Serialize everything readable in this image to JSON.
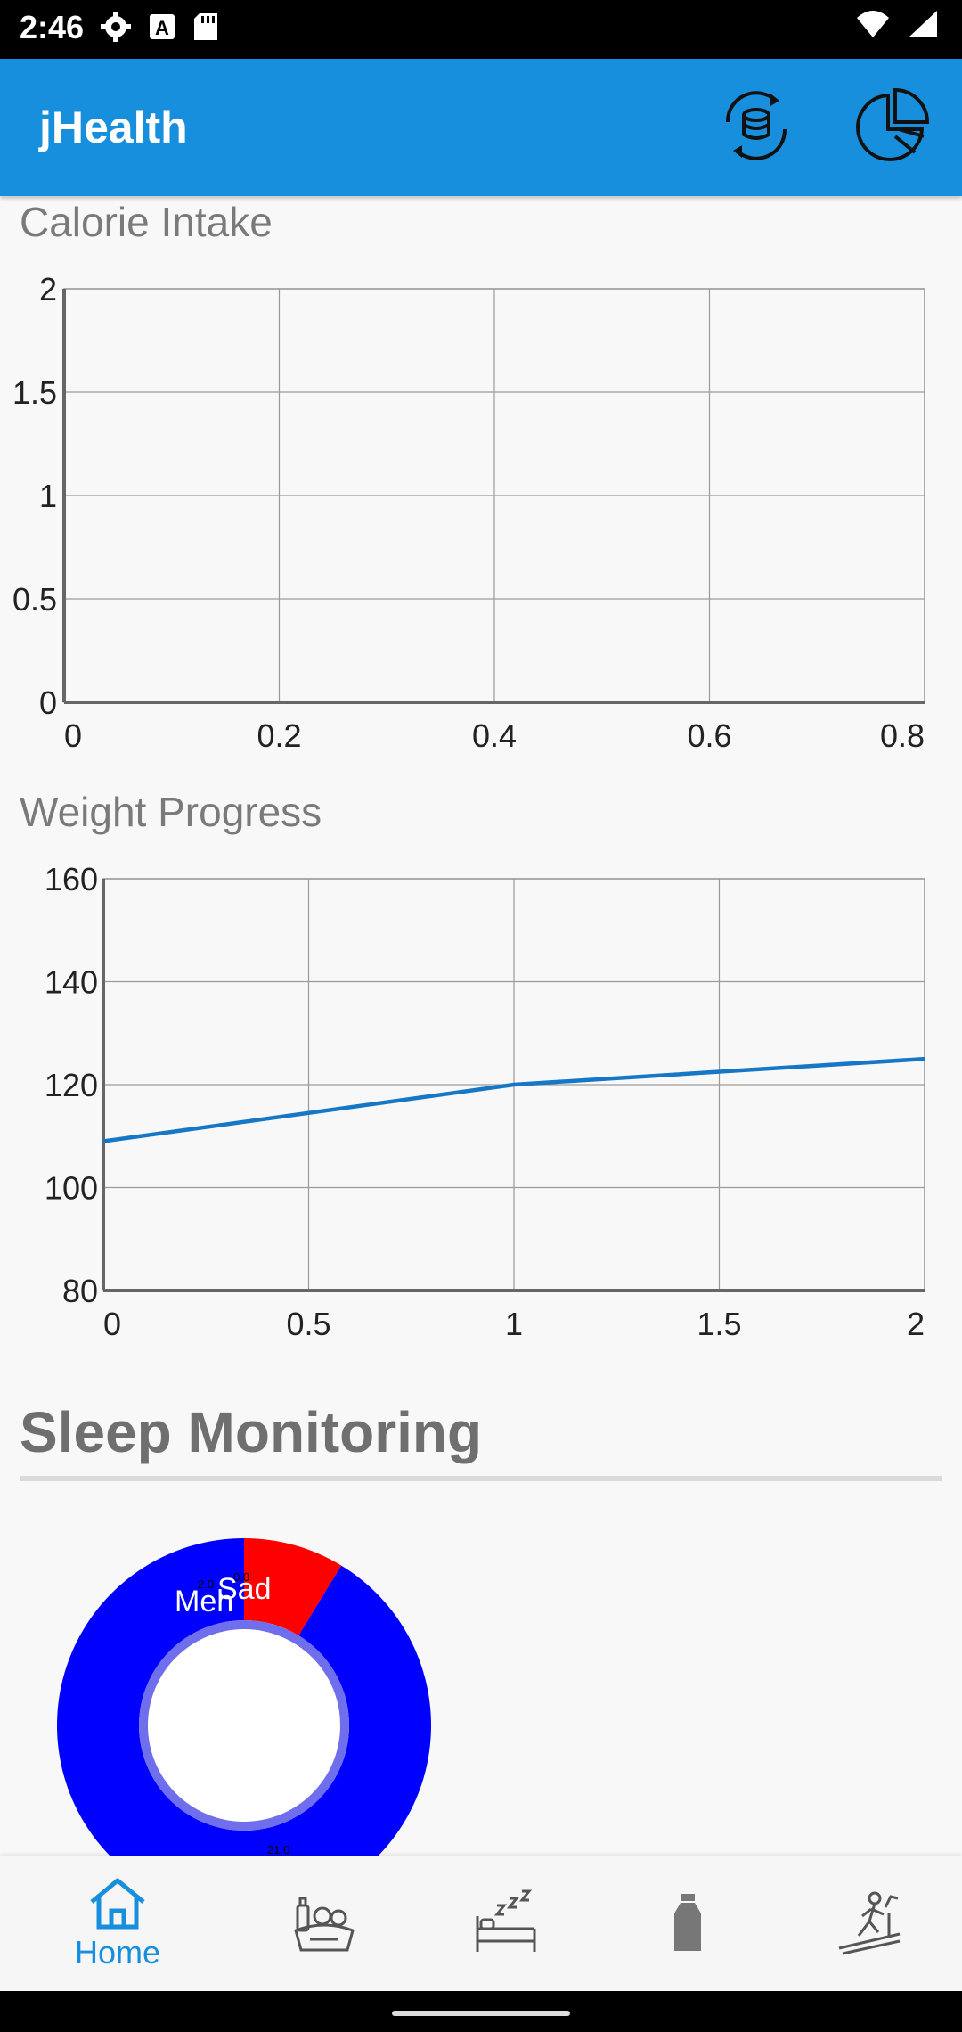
{
  "status_bar": {
    "time": "2:46",
    "icons": [
      "settings-icon",
      "a-icon",
      "sd-card-icon",
      "wifi-icon",
      "signal-icon"
    ]
  },
  "app_bar": {
    "title": "jHealth",
    "actions": [
      "database-sync-icon",
      "pie-chart-icon"
    ],
    "background": "#188fdc"
  },
  "calorie_chart": {
    "heading": "Calorie Intake",
    "chart_data": {
      "type": "line",
      "title": "Calorie Intake",
      "x": [],
      "series": [],
      "xlim": [
        0,
        0.8
      ],
      "ylim": [
        0,
        2
      ],
      "x_ticks": [
        "0",
        "0.2",
        "0.4",
        "0.6",
        "0.8"
      ],
      "y_ticks": [
        "0",
        "0.5",
        "1",
        "1.5",
        "2"
      ],
      "grid": true
    }
  },
  "weight_chart": {
    "heading": "Weight Progress",
    "chart_data": {
      "type": "line",
      "title": "Weight Progress",
      "x": [
        0,
        1,
        2
      ],
      "series": [
        {
          "values": [
            109,
            120,
            125
          ]
        }
      ],
      "xlim": [
        0,
        2
      ],
      "ylim": [
        80,
        160
      ],
      "x_ticks": [
        "0",
        "0.5",
        "1",
        "1.5",
        "2"
      ],
      "y_ticks": [
        "80",
        "100",
        "120",
        "140",
        "160"
      ],
      "grid": true,
      "line_color": "#1577c5"
    }
  },
  "sleep": {
    "heading": "Sleep Monitoring",
    "chart_data": {
      "type": "pie",
      "slices": [
        {
          "label": "Sad",
          "value": 0.0,
          "color": "#ff0000"
        },
        {
          "label": "Meh",
          "value": 2.0,
          "color": "#ff0000"
        },
        {
          "label": "",
          "value": 21.0,
          "color": "#0000ff"
        }
      ],
      "value_labels": [
        "2.0",
        "0.0",
        "21.0"
      ],
      "hole_color": "#ffffff",
      "ring_color": "#6f6fee"
    }
  },
  "bottom_nav": {
    "items": [
      {
        "label": "Home",
        "icon": "home-icon",
        "active": true
      },
      {
        "label": "",
        "icon": "food-icon",
        "active": false
      },
      {
        "label": "",
        "icon": "sleep-icon",
        "active": false
      },
      {
        "label": "",
        "icon": "water-bottle-icon",
        "active": false
      },
      {
        "label": "",
        "icon": "treadmill-icon",
        "active": false
      }
    ],
    "active_color": "#188fdc"
  }
}
